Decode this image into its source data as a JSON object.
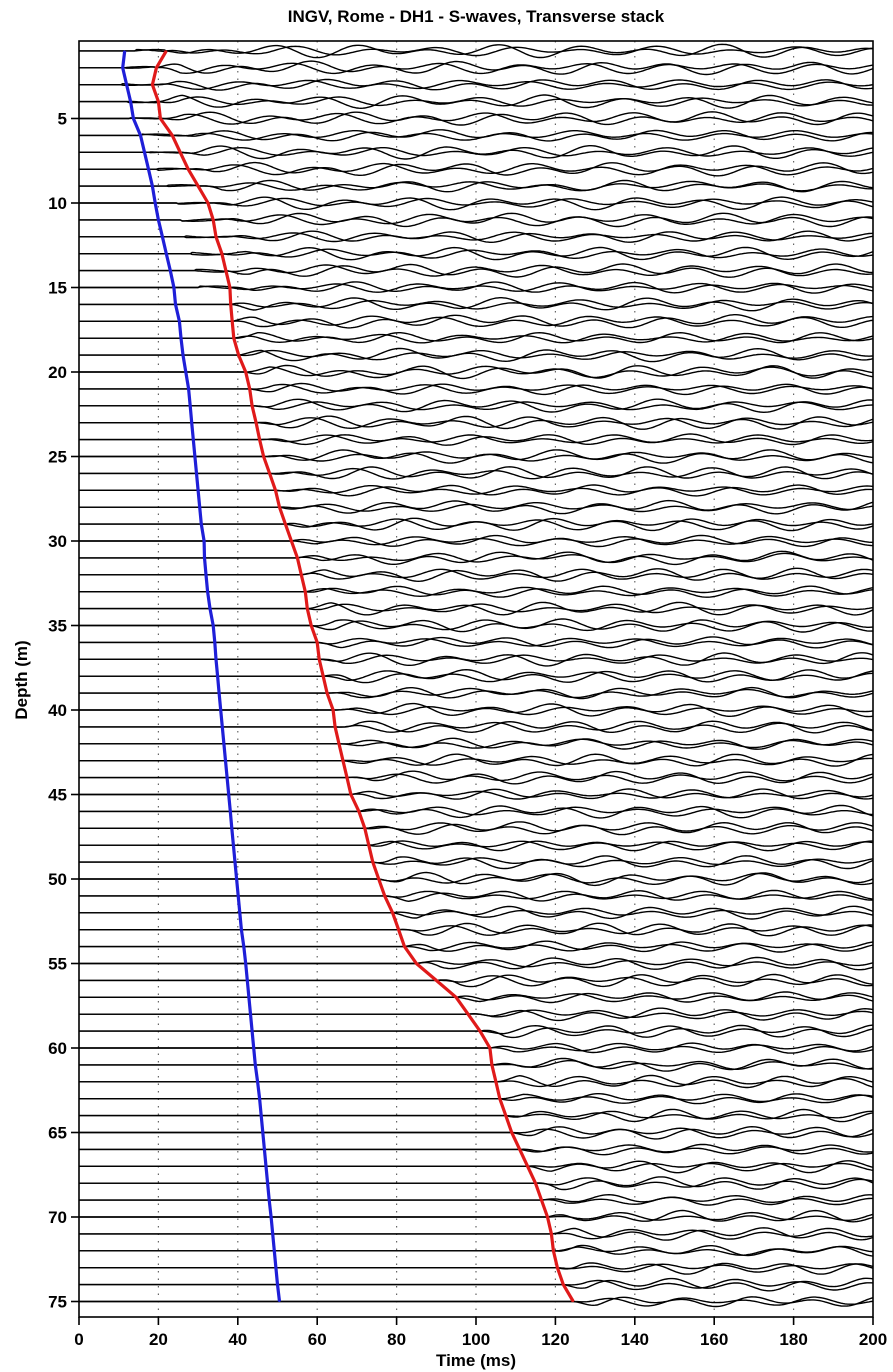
{
  "chart_data": {
    "type": "line",
    "title": "INGV, Rome - DH1 - S-waves, Transverse stack",
    "xlabel": "Time (ms)",
    "ylabel": "Depth (m)",
    "xlim": [
      0,
      200
    ],
    "ylim": [
      0,
      76
    ],
    "x_ticks": [
      0,
      20,
      40,
      60,
      80,
      100,
      120,
      140,
      160,
      180,
      200
    ],
    "x_tick_labels": [
      "0",
      "20",
      "40",
      "60",
      "80",
      "100",
      "120",
      "140",
      "160",
      "180",
      "200"
    ],
    "y_ticks": [
      5,
      10,
      15,
      20,
      25,
      30,
      35,
      40,
      45,
      50,
      55,
      60,
      65,
      70,
      75
    ],
    "y_tick_labels": [
      "5",
      "10",
      "15",
      "20",
      "25",
      "30",
      "35",
      "40",
      "45",
      "50",
      "55",
      "60",
      "65",
      "70",
      "75"
    ],
    "y_inverted": true,
    "grid": "vertical dotted at x ticks",
    "trace_depths": [
      1,
      2,
      3,
      4,
      5,
      6,
      7,
      8,
      9,
      10,
      11,
      12,
      13,
      14,
      15,
      16,
      17,
      18,
      19,
      20,
      21,
      22,
      23,
      24,
      25,
      26,
      27,
      28,
      29,
      30,
      31,
      32,
      33,
      34,
      35,
      36,
      37,
      38,
      39,
      40,
      41,
      42,
      43,
      44,
      45,
      46,
      47,
      48,
      49,
      50,
      51,
      52,
      53,
      54,
      55,
      56,
      57,
      58,
      59,
      60,
      61,
      62,
      63,
      64,
      65,
      66,
      67,
      68,
      69,
      70,
      71,
      72,
      73,
      74,
      75
    ],
    "series": [
      {
        "color": "#1f1fd8",
        "x": [
          11.5,
          11,
          12,
          13,
          13.7,
          15.5,
          16.5,
          17.5,
          18.5,
          19.2,
          20,
          21,
          22,
          23,
          23.9,
          24.3,
          25.3,
          25.7,
          26.2,
          26.9,
          27.6,
          28.0,
          28.4,
          28.8,
          29.2,
          29.6,
          30.0,
          30.4,
          30.8,
          31.5,
          31.6,
          32.0,
          32.4,
          33.0,
          33.8,
          34.2,
          34.5,
          34.9,
          35.3,
          35.7,
          36.1,
          36.5,
          36.9,
          37.3,
          37.7,
          38.1,
          38.5,
          38.9,
          39.3,
          39.7,
          40.1,
          40.5,
          40.9,
          41.5,
          42.0,
          42.4,
          42.8,
          43.2,
          43.6,
          44.0,
          44.4,
          45.0,
          45.5,
          45.9,
          46.3,
          46.7,
          47.1,
          47.5,
          47.9,
          48.4,
          48.8,
          49.2,
          49.6,
          50.0,
          50.5
        ],
        "y": [
          1,
          2,
          3,
          4,
          5,
          6,
          7,
          8,
          9,
          10,
          11,
          12,
          13,
          14,
          15,
          16,
          17,
          18,
          19,
          20,
          21,
          22,
          23,
          24,
          25,
          26,
          27,
          28,
          29,
          30,
          31,
          32,
          33,
          34,
          35,
          36,
          37,
          38,
          39,
          40,
          41,
          42,
          43,
          44,
          45,
          46,
          47,
          48,
          49,
          50,
          51,
          52,
          53,
          54,
          55,
          56,
          57,
          58,
          59,
          60,
          61,
          62,
          63,
          64,
          65,
          66,
          67,
          68,
          69,
          70,
          71,
          72,
          73,
          74,
          75
        ]
      },
      {
        "color": "#e01a1a",
        "x": [
          22,
          19.5,
          18.5,
          20,
          20.5,
          23.5,
          25.5,
          27.5,
          30,
          32.5,
          33.8,
          34.5,
          36,
          37,
          38,
          38.2,
          38.6,
          39,
          40.2,
          42,
          43,
          43.6,
          44.6,
          45.5,
          46.5,
          48,
          49.5,
          50.5,
          52,
          53.5,
          55,
          56,
          57,
          57.5,
          58.5,
          60,
          60.5,
          61.5,
          62.5,
          64,
          64.5,
          65.5,
          66.5,
          67.5,
          68.5,
          70.5,
          72,
          73,
          74,
          75.5,
          77,
          79,
          80.5,
          82,
          85,
          90,
          95,
          98,
          101,
          103.5,
          104,
          105,
          106,
          107.5,
          109,
          111,
          113,
          115,
          116.5,
          118,
          119,
          119.5,
          120.5,
          122,
          124.5
        ],
        "y": [
          1,
          2,
          3,
          4,
          5,
          6,
          7,
          8,
          9,
          10,
          11,
          12,
          13,
          14,
          15,
          16,
          17,
          18,
          19,
          20,
          21,
          22,
          23,
          24,
          25,
          26,
          27,
          28,
          29,
          30,
          31,
          32,
          33,
          34,
          35,
          36,
          37,
          38,
          39,
          40,
          41,
          42,
          43,
          44,
          45,
          46,
          47,
          48,
          49,
          50,
          51,
          52,
          53,
          54,
          55,
          56,
          57,
          58,
          59,
          60,
          61,
          62,
          63,
          64,
          65,
          66,
          67,
          68,
          69,
          70,
          71,
          72,
          73,
          74,
          75
        ]
      }
    ]
  }
}
